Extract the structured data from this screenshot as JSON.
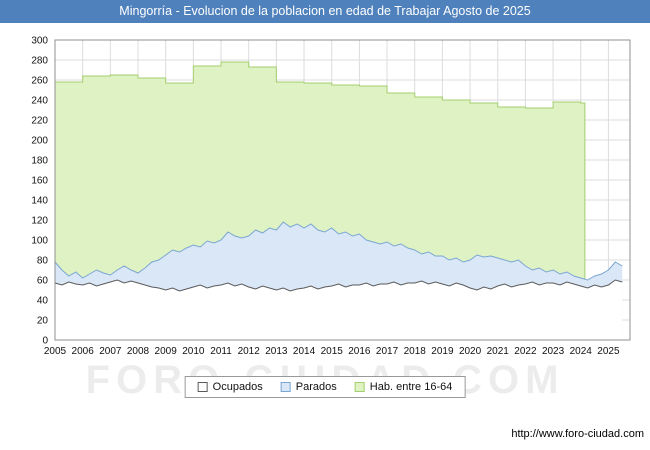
{
  "colors": {
    "title_bar": "#4f81bd",
    "grid": "#dcdcdc",
    "plot_border": "#909090"
  },
  "header": {
    "title": "Mingorría - Evolucion de la poblacion en edad de Trabajar Agosto de 2025"
  },
  "watermark": "FORO-CIUDAD.COM",
  "footer": {
    "url": "http://www.foro-ciudad.com"
  },
  "legend": {
    "position": "bottom-center",
    "items": [
      {
        "label": "Ocupados",
        "fill": "#ffffff",
        "stroke": "#5a5a5a"
      },
      {
        "label": "Parados",
        "fill": "#d9e7f7",
        "stroke": "#7aa6d2"
      },
      {
        "label": "Hab. entre 16-64",
        "fill": "#dff2c3",
        "stroke": "#a3cf6e"
      }
    ]
  },
  "chart_data": {
    "type": "area",
    "title": "Mingorría - Evolucion de la poblacion en edad de Trabajar Agosto de 2025",
    "xlabel": "",
    "ylabel": "",
    "ylim": [
      0,
      300
    ],
    "ytick_step": 20,
    "grid": true,
    "x_start_year": 2005,
    "x_axis_end": 2025.78,
    "x_tick_years": [
      2005,
      2006,
      2007,
      2008,
      2009,
      2010,
      2011,
      2012,
      2013,
      2014,
      2015,
      2016,
      2017,
      2018,
      2019,
      2020,
      2021,
      2022,
      2023,
      2024,
      2025
    ],
    "series": [
      {
        "key": "habitantes",
        "name": "Hab. entre 16-64",
        "render": "step-area",
        "fill": "#dff2c3",
        "line": "#a3cf6e",
        "years": [
          2005,
          2006,
          2007,
          2008,
          2009,
          2010,
          2011,
          2012,
          2013,
          2014,
          2015,
          2016,
          2017,
          2018,
          2019,
          2020,
          2021,
          2022,
          2023,
          2024
        ],
        "values": [
          258,
          264,
          265,
          262,
          257,
          274,
          278,
          273,
          258,
          257,
          255,
          254,
          247,
          243,
          240,
          237,
          233,
          232,
          238,
          237
        ],
        "end_x": 2024.15
      },
      {
        "key": "parados",
        "name": "Parados",
        "render": "area",
        "stacked_on": "ocupados",
        "fill": "#d9e7f7",
        "line": "#7aa6d2",
        "x_step": 0.25,
        "values": [
          78,
          70,
          64,
          68,
          62,
          66,
          70,
          67,
          65,
          70,
          74,
          70,
          67,
          72,
          78,
          80,
          85,
          90,
          88,
          92,
          95,
          93,
          99,
          97,
          100,
          108,
          104,
          102,
          104,
          110,
          107,
          112,
          110,
          118,
          113,
          116,
          112,
          116,
          110,
          108,
          112,
          106,
          108,
          104,
          106,
          100,
          98,
          96,
          98,
          94,
          96,
          92,
          90,
          86,
          88,
          84,
          84,
          80,
          82,
          78,
          80,
          85,
          83,
          84,
          82,
          80,
          78,
          80,
          74,
          70,
          72,
          68,
          70,
          66,
          68,
          64,
          62,
          60,
          64,
          66,
          70,
          78,
          74
        ]
      },
      {
        "key": "ocupados",
        "name": "Ocupados",
        "render": "area",
        "fill": "#ffffff",
        "line": "#5a5a5a",
        "x_step": 0.25,
        "values": [
          57,
          55,
          58,
          56,
          55,
          57,
          54,
          56,
          58,
          60,
          57,
          59,
          57,
          55,
          53,
          52,
          50,
          52,
          49,
          51,
          53,
          55,
          52,
          54,
          55,
          57,
          54,
          56,
          53,
          51,
          54,
          52,
          50,
          52,
          49,
          51,
          52,
          54,
          51,
          53,
          54,
          56,
          53,
          55,
          55,
          57,
          54,
          56,
          56,
          58,
          55,
          57,
          57,
          59,
          56,
          58,
          56,
          54,
          57,
          55,
          52,
          50,
          53,
          51,
          54,
          56,
          53,
          55,
          56,
          58,
          55,
          57,
          57,
          55,
          58,
          56,
          54,
          52,
          55,
          53,
          55,
          60,
          58
        ]
      }
    ]
  }
}
